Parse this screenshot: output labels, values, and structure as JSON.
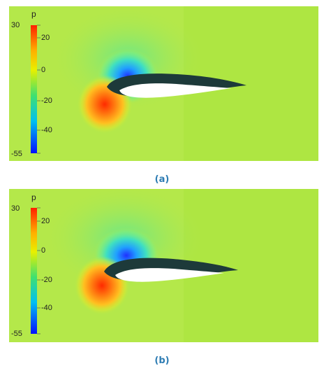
{
  "panels": [
    {
      "id": "a",
      "caption": "(a)",
      "colorbar": {
        "title": "p",
        "labels": [
          "30",
          "20",
          "0",
          "-20",
          "-40",
          "-55"
        ]
      }
    },
    {
      "id": "b",
      "caption": "(b)",
      "colorbar": {
        "title": "p",
        "labels": [
          "30",
          "20",
          "0",
          "-20",
          "-40",
          "-55"
        ]
      }
    }
  ],
  "colors": {
    "background_field": "#b4e84a",
    "caption": "#2d7cb3",
    "colorbar_top": "#ff2000",
    "colorbar_bottom": "#0010ff"
  }
}
